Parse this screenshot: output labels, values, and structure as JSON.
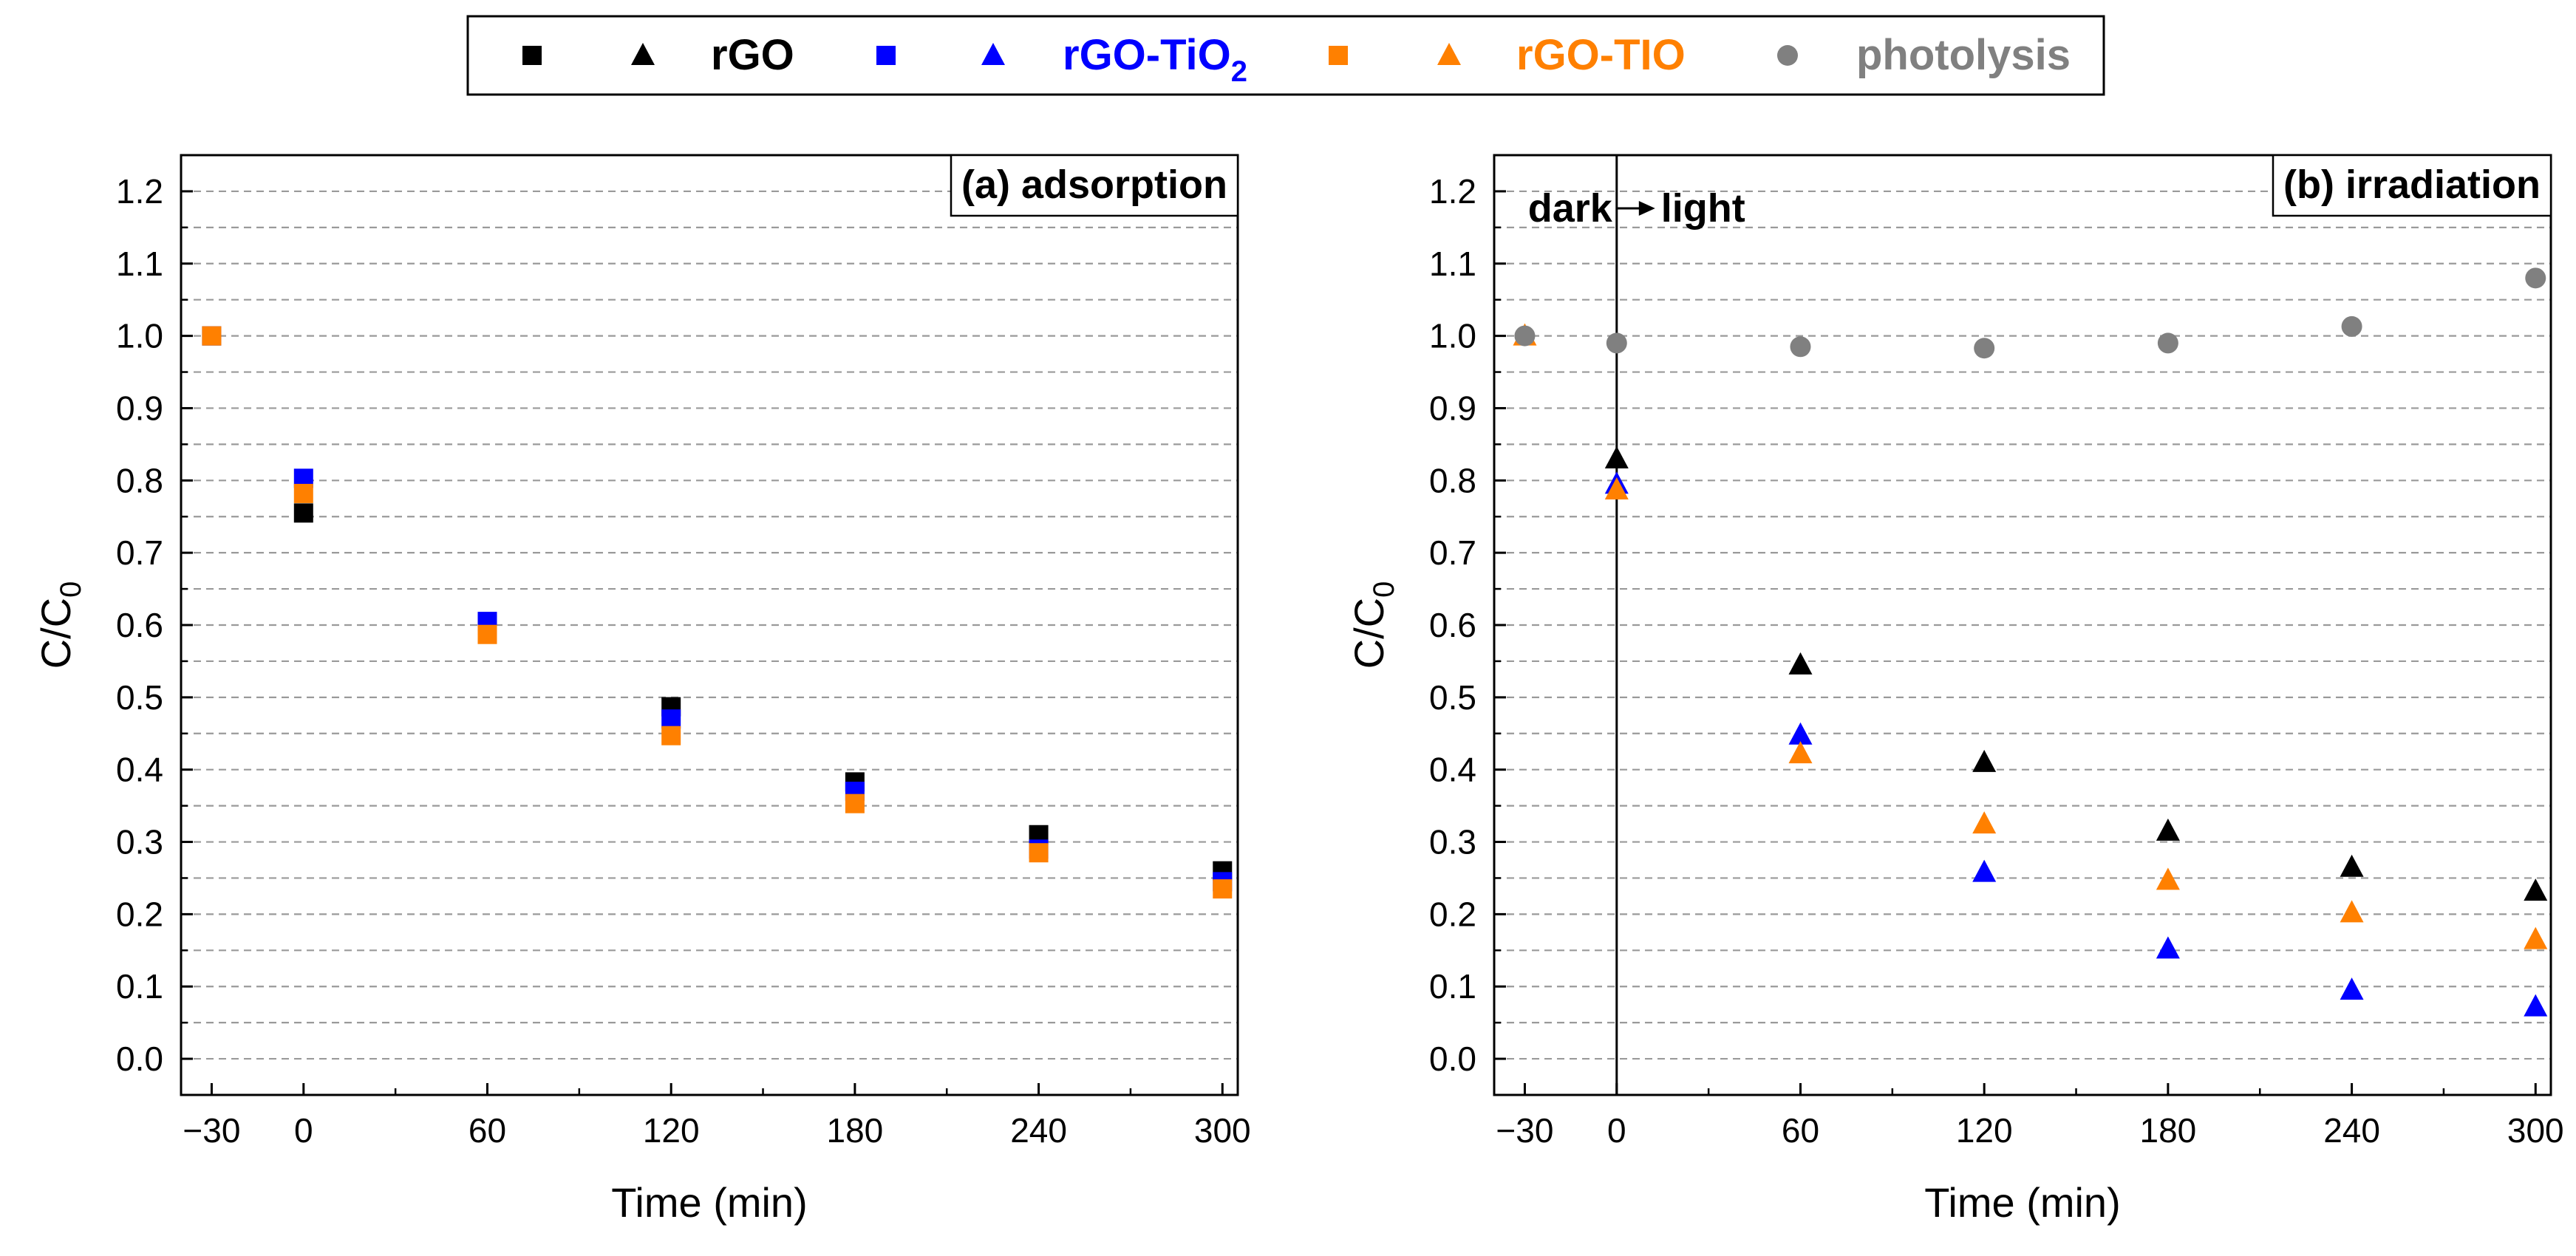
{
  "legend": {
    "items": [
      {
        "label": "rGO",
        "sub": "",
        "color": "#000000"
      },
      {
        "label": "rGO-TiO",
        "sub": "2",
        "color": "#0000ff"
      },
      {
        "label": "rGO-TIO",
        "sub": "",
        "color": "#ff8000"
      },
      {
        "label": "photolysis",
        "sub": "",
        "color": "#808080"
      }
    ]
  },
  "chart_data": [
    {
      "type": "scatter",
      "panel_label": "(a) adsorption",
      "xlabel": "Time (min)",
      "ylabel": "C/C",
      "ylabel_sub": "0",
      "xlim": [
        -40,
        305
      ],
      "ylim": [
        -0.05,
        1.25
      ],
      "xticks": [
        -30,
        0,
        60,
        120,
        180,
        240,
        300
      ],
      "xtick_labels": [
        "−30",
        "0",
        "60",
        "120",
        "180",
        "240",
        "300"
      ],
      "yticks": [
        0.0,
        0.1,
        0.2,
        0.3,
        0.4,
        0.5,
        0.6,
        0.7,
        0.8,
        0.9,
        1.0,
        1.1,
        1.2
      ],
      "ytick_labels": [
        "0.0",
        "0.1",
        "0.2",
        "0.3",
        "0.4",
        "0.5",
        "0.6",
        "0.7",
        "0.8",
        "0.9",
        "1.0",
        "1.1",
        "1.2"
      ],
      "grid": "horizontal dashed",
      "series": [
        {
          "name": "rGO",
          "marker": "square",
          "color": "#000000",
          "x": [
            -30,
            0,
            60,
            120,
            180,
            240,
            300
          ],
          "y": [
            1.0,
            0.755,
            0.6,
            0.487,
            0.383,
            0.31,
            0.26
          ]
        },
        {
          "name": "rGO-TiO2",
          "marker": "square",
          "color": "#0000ff",
          "x": [
            -30,
            0,
            60,
            120,
            180,
            240,
            300
          ],
          "y": [
            1.0,
            0.803,
            0.605,
            0.47,
            0.37,
            0.29,
            0.245
          ]
        },
        {
          "name": "rGO-TIO",
          "marker": "square",
          "color": "#ff8000",
          "x": [
            -30,
            0,
            60,
            120,
            180,
            240,
            300
          ],
          "y": [
            1.0,
            0.782,
            0.587,
            0.447,
            0.353,
            0.285,
            0.235
          ]
        }
      ]
    },
    {
      "type": "scatter",
      "panel_label": "(b) irradiation",
      "annotation": {
        "left": "dark",
        "right": "light",
        "x": 0
      },
      "xlabel": "Time (min)",
      "ylabel": "C/C",
      "ylabel_sub": "0",
      "xlim": [
        -40,
        305
      ],
      "ylim": [
        -0.05,
        1.25
      ],
      "xticks": [
        -30,
        0,
        60,
        120,
        180,
        240,
        300
      ],
      "xtick_labels": [
        "−30",
        "0",
        "60",
        "120",
        "180",
        "240",
        "300"
      ],
      "yticks": [
        0.0,
        0.1,
        0.2,
        0.3,
        0.4,
        0.5,
        0.6,
        0.7,
        0.8,
        0.9,
        1.0,
        1.1,
        1.2
      ],
      "ytick_labels": [
        "0.0",
        "0.1",
        "0.2",
        "0.3",
        "0.4",
        "0.5",
        "0.6",
        "0.7",
        "0.8",
        "0.9",
        "1.0",
        "1.1",
        "1.2"
      ],
      "grid": "horizontal dashed",
      "series": [
        {
          "name": "rGO",
          "marker": "triangle",
          "color": "#000000",
          "x": [
            0,
            60,
            120,
            180,
            240,
            300
          ],
          "y": [
            0.83,
            0.545,
            0.41,
            0.315,
            0.265,
            0.232
          ]
        },
        {
          "name": "rGO-TiO2",
          "marker": "triangle",
          "color": "#0000ff",
          "x": [
            0,
            60,
            120,
            180,
            240,
            300
          ],
          "y": [
            0.795,
            0.448,
            0.258,
            0.152,
            0.095,
            0.072
          ]
        },
        {
          "name": "rGO-TIO",
          "marker": "triangle",
          "color": "#ff8000",
          "x": [
            -30,
            0,
            60,
            120,
            180,
            240,
            300
          ],
          "y": [
            1.0,
            0.787,
            0.422,
            0.325,
            0.247,
            0.202,
            0.165
          ]
        },
        {
          "name": "photolysis",
          "marker": "circle",
          "color": "#808080",
          "x": [
            -30,
            0,
            60,
            120,
            180,
            240,
            300
          ],
          "y": [
            1.0,
            0.99,
            0.985,
            0.983,
            0.99,
            1.013,
            1.08
          ]
        }
      ]
    }
  ]
}
